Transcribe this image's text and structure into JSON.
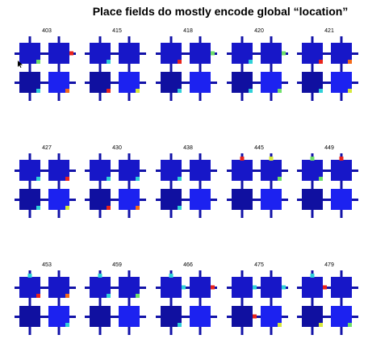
{
  "page_title": "Place fields do mostly encode global “location”",
  "colors": {
    "room_dark": "#1010a0",
    "room_mid": "#1717c8",
    "room_bright": "#1c22f0",
    "corridor": "#1212a8",
    "hot_red": "#e8231c",
    "hot_orange": "#f36a1a",
    "hot_yellow": "#d6e83a",
    "hot_green": "#6fe06a",
    "hot_cyan": "#2fd0d8"
  },
  "panels": [
    {
      "id": "403",
      "bright_room": 3,
      "hotspots": [
        {
          "pos": "r1",
          "c": "hot_red"
        },
        {
          "pos": "b0",
          "c": "hot_green"
        },
        {
          "pos": "b3",
          "c": "hot_orange"
        },
        {
          "pos": "b2",
          "c": "hot_cyan"
        }
      ]
    },
    {
      "id": "415",
      "bright_room": 3,
      "hotspots": [
        {
          "pos": "b0",
          "c": "hot_cyan"
        },
        {
          "pos": "b2",
          "c": "hot_red"
        },
        {
          "pos": "b3",
          "c": "hot_yellow"
        }
      ]
    },
    {
      "id": "418",
      "bright_room": 3,
      "hotspots": [
        {
          "pos": "b0",
          "c": "hot_red"
        },
        {
          "pos": "r1",
          "c": "hot_green"
        },
        {
          "pos": "b2",
          "c": "hot_cyan"
        }
      ]
    },
    {
      "id": "420",
      "bright_room": 3,
      "hotspots": [
        {
          "pos": "b0",
          "c": "hot_cyan"
        },
        {
          "pos": "r1",
          "c": "hot_green"
        },
        {
          "pos": "b2",
          "c": "hot_cyan"
        },
        {
          "pos": "b3",
          "c": "hot_green"
        }
      ]
    },
    {
      "id": "421",
      "bright_room": 3,
      "hotspots": [
        {
          "pos": "b0",
          "c": "hot_red"
        },
        {
          "pos": "b1",
          "c": "hot_orange"
        },
        {
          "pos": "b2",
          "c": "hot_cyan"
        },
        {
          "pos": "b3",
          "c": "hot_yellow"
        }
      ]
    },
    {
      "id": "427",
      "bright_room": 3,
      "hotspots": [
        {
          "pos": "b0",
          "c": "hot_cyan"
        },
        {
          "pos": "b1",
          "c": "hot_red"
        },
        {
          "pos": "b2",
          "c": "hot_cyan"
        },
        {
          "pos": "b3",
          "c": "hot_yellow"
        }
      ]
    },
    {
      "id": "430",
      "bright_room": 3,
      "hotspots": [
        {
          "pos": "b0",
          "c": "hot_cyan"
        },
        {
          "pos": "b1",
          "c": "hot_cyan"
        },
        {
          "pos": "b2",
          "c": "hot_red"
        },
        {
          "pos": "b3",
          "c": "hot_orange"
        }
      ]
    },
    {
      "id": "438",
      "bright_room": 3,
      "hotspots": [
        {
          "pos": "b0",
          "c": "hot_cyan"
        },
        {
          "pos": "b2",
          "c": "hot_cyan"
        }
      ]
    },
    {
      "id": "445",
      "bright_room": 3,
      "hotspots": [
        {
          "pos": "t0",
          "c": "hot_red"
        },
        {
          "pos": "t1",
          "c": "hot_yellow"
        },
        {
          "pos": "b1",
          "c": "hot_green"
        }
      ]
    },
    {
      "id": "449",
      "bright_room": 3,
      "hotspots": [
        {
          "pos": "t0",
          "c": "hot_green"
        },
        {
          "pos": "t1",
          "c": "hot_red"
        },
        {
          "pos": "b0",
          "c": "hot_green"
        }
      ]
    },
    {
      "id": "453",
      "bright_room": 3,
      "hotspots": [
        {
          "pos": "t0",
          "c": "hot_cyan"
        },
        {
          "pos": "b0",
          "c": "hot_red"
        },
        {
          "pos": "b1",
          "c": "hot_orange"
        },
        {
          "pos": "b3",
          "c": "hot_cyan"
        }
      ]
    },
    {
      "id": "459",
      "bright_room": 3,
      "hotspots": [
        {
          "pos": "t0",
          "c": "hot_cyan"
        },
        {
          "pos": "b0",
          "c": "hot_cyan"
        },
        {
          "pos": "b1",
          "c": "hot_green"
        }
      ]
    },
    {
      "id": "466",
      "bright_room": 3,
      "hotspots": [
        {
          "pos": "t0",
          "c": "hot_cyan"
        },
        {
          "pos": "r0",
          "c": "hot_cyan"
        },
        {
          "pos": "r1",
          "c": "hot_red"
        },
        {
          "pos": "b2",
          "c": "hot_cyan"
        }
      ]
    },
    {
      "id": "475",
      "bright_room": 3,
      "hotspots": [
        {
          "pos": "r0",
          "c": "hot_cyan"
        },
        {
          "pos": "r1",
          "c": "hot_cyan"
        },
        {
          "pos": "r2",
          "c": "hot_red"
        },
        {
          "pos": "b3",
          "c": "hot_yellow"
        }
      ]
    },
    {
      "id": "479",
      "bright_room": 3,
      "hotspots": [
        {
          "pos": "t0",
          "c": "hot_cyan"
        },
        {
          "pos": "r0",
          "c": "hot_red"
        },
        {
          "pos": "b2",
          "c": "hot_yellow"
        },
        {
          "pos": "b3",
          "c": "hot_green"
        }
      ]
    }
  ]
}
